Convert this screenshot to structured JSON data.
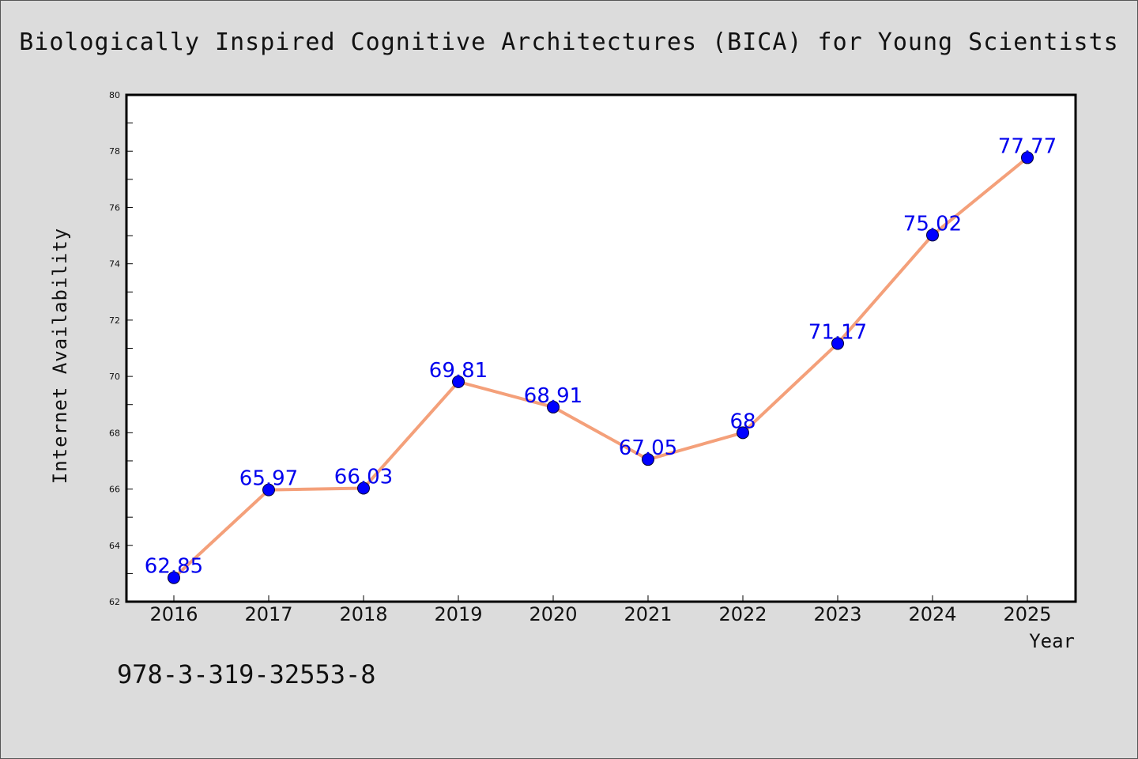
{
  "title": "Biologically Inspired Cognitive Architectures (BICA) for Young Scientists",
  "isbn": "978-3-319-32553-8",
  "colors": {
    "background": "#dcdcdc",
    "plot_background": "#ffffff",
    "line": "#f4a07a",
    "marker": "#0000ff",
    "data_label": "#0000ee"
  },
  "chart_data": {
    "type": "line",
    "xlabel": "Year",
    "ylabel": "Internet Availability",
    "categories": [
      "2016",
      "2017",
      "2018",
      "2019",
      "2020",
      "2021",
      "2022",
      "2023",
      "2024",
      "2025"
    ],
    "series": [
      {
        "values": [
          62.85,
          65.97,
          66.03,
          69.81,
          68.91,
          67.05,
          68,
          71.17,
          75.02,
          77.77
        ],
        "labels": [
          "62.85",
          "65.97",
          "66.03",
          "69.81",
          "68.91",
          "67.05",
          "68",
          "71.17",
          "75.02",
          "77.77"
        ]
      }
    ],
    "ylim": [
      62,
      80
    ],
    "yticks": [
      "62",
      "64",
      "66",
      "68",
      "70",
      "72",
      "74",
      "76",
      "78",
      "80"
    ],
    "grid": false,
    "legend": "none"
  }
}
